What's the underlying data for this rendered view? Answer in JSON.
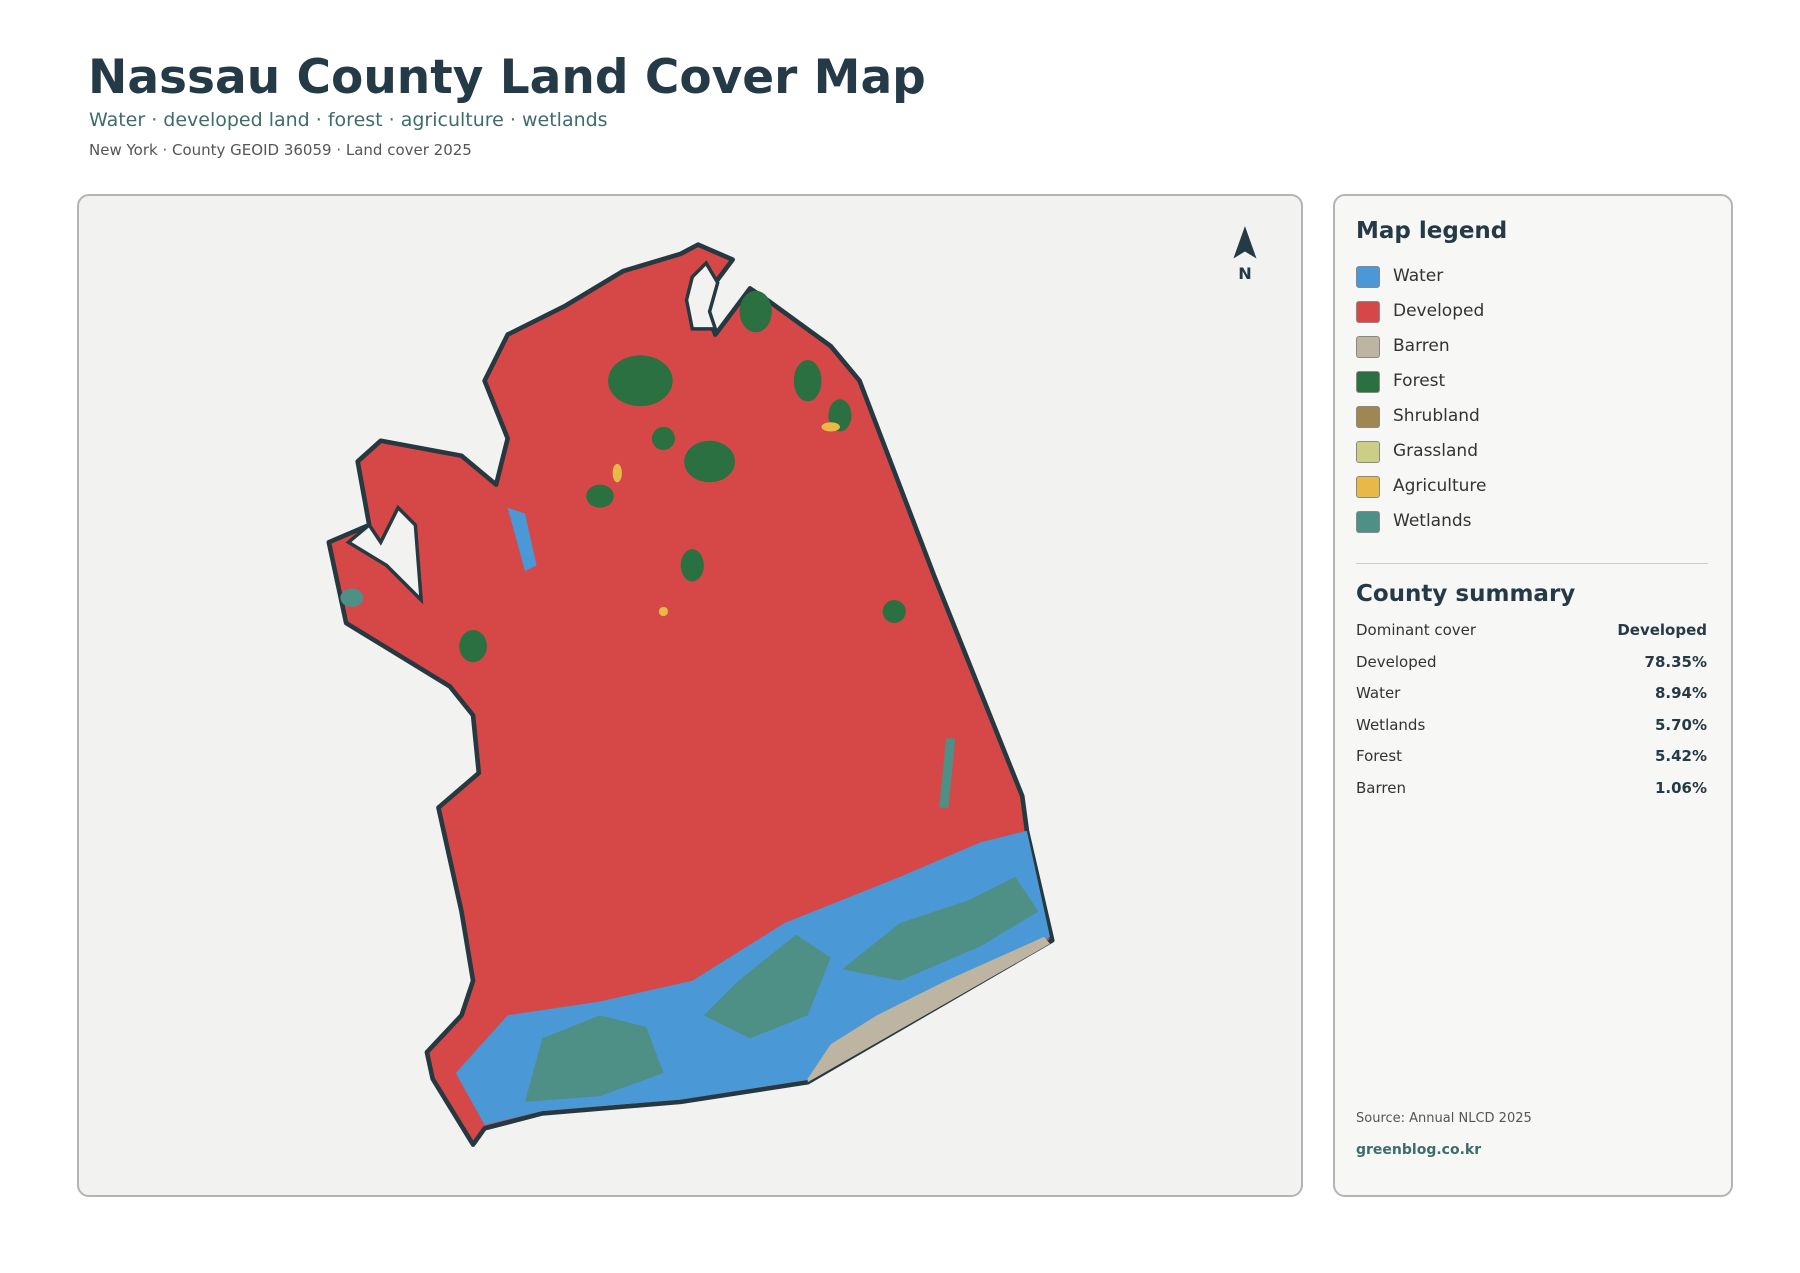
{
  "header": {
    "title": "Nassau County Land Cover Map",
    "subtitle": "Water · developed land · forest · agriculture · wetlands",
    "meta": "New York · County GEOID 36059 · Land cover 2025"
  },
  "map": {
    "north": "N"
  },
  "legend": {
    "title": "Map legend",
    "items": [
      {
        "label": "Water",
        "color": "#4a98d6"
      },
      {
        "label": "Developed",
        "color": "#d64848"
      },
      {
        "label": "Barren",
        "color": "#bdb5a2"
      },
      {
        "label": "Forest",
        "color": "#2a7040"
      },
      {
        "label": "Shrubland",
        "color": "#a08650"
      },
      {
        "label": "Grassland",
        "color": "#cbcf86"
      },
      {
        "label": "Agriculture",
        "color": "#e9b948"
      },
      {
        "label": "Wetlands",
        "color": "#4e8f86"
      }
    ]
  },
  "summary": {
    "title": "County summary",
    "rows": [
      {
        "label": "Dominant cover",
        "value": "Developed"
      },
      {
        "label": "Developed",
        "value": "78.35%"
      },
      {
        "label": "Water",
        "value": "8.94%"
      },
      {
        "label": "Wetlands",
        "value": "5.70%"
      },
      {
        "label": "Forest",
        "value": "5.42%"
      },
      {
        "label": "Barren",
        "value": "1.06%"
      }
    ]
  },
  "footer": {
    "source": "Source: Annual NLCD 2025",
    "site": "greenblog.co.kr"
  }
}
